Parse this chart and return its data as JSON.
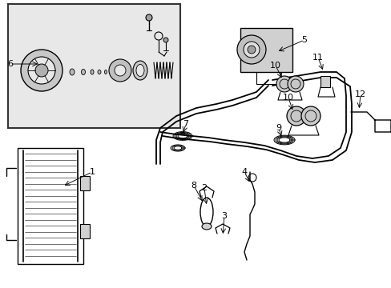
{
  "bg_color": "#ffffff",
  "line_color": "#000000",
  "inset_bg": "#e8e8e8",
  "fig_width": 4.89,
  "fig_height": 3.6,
  "dpi": 100
}
